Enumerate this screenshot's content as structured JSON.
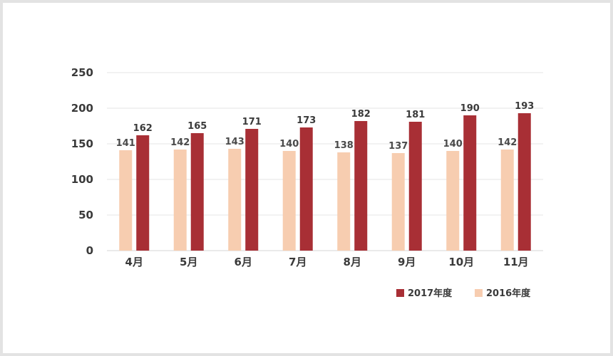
{
  "chart_data": {
    "type": "bar",
    "categories": [
      "4月",
      "5月",
      "6月",
      "7月",
      "8月",
      "9月",
      "10月",
      "11月"
    ],
    "series": [
      {
        "name": "2016年度",
        "color": "#f7cdb0",
        "label_color": "#4a4a4a",
        "values": [
          141,
          142,
          143,
          140,
          138,
          137,
          140,
          142
        ]
      },
      {
        "name": "2017年度",
        "color": "#a82f35",
        "label_color": "#3a3a3a",
        "values": [
          162,
          165,
          171,
          173,
          182,
          181,
          190,
          193
        ]
      }
    ],
    "y_ticks": [
      "0",
      "50",
      "100",
      "150",
      "200",
      "250"
    ],
    "ylim": [
      0,
      250
    ],
    "grid": true,
    "legend_position": "bottom-right",
    "legend_order": [
      "2017年度",
      "2016年度"
    ]
  }
}
